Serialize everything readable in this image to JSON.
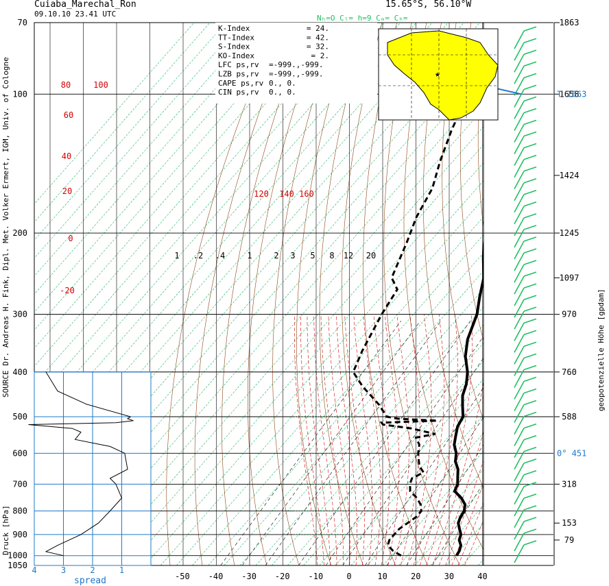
{
  "header": {
    "station": "Cuiaba_Marechal_Ron",
    "datetime": "09.10.10  23.41 UTC",
    "coords": "15.65°S, 56.10°W",
    "cloud_info": "Nₕ=O  Cₗ=    h=9  Cₘ=     Cₕ="
  },
  "left_source": "SOURCE Dr. Andreas H. Fink, Dipl. Met. Volker Ermert, IGM, Univ. of Cologne",
  "left_druck": "Druck [hPa]",
  "right_label": "geopotenzielle Höhe [gpdam]",
  "spread_label": "spread",
  "indices": [
    {
      "name": "K-Index",
      "val": "24."
    },
    {
      "name": "TT-Index",
      "val": "42."
    },
    {
      "name": "S-Index",
      "val": "32."
    },
    {
      "name": "KO-Index",
      "val": "2."
    },
    {
      "name": "LFC  ps,rv",
      "val": "=-999.,-999."
    },
    {
      "name": "LZB  ps,rv",
      "val": "=-999.,-999."
    },
    {
      "name": "CAPE ps,rv",
      "val": "0.,    0."
    },
    {
      "name": "CIN  ps,rv",
      "val": "0.,    0."
    }
  ],
  "colors": {
    "temp": "#000000",
    "dewpoint": "#000000",
    "dry_adiabat": "#8b4513",
    "moist_adiabat": "#d40000",
    "mixing_ratio": "#000000",
    "green_lines": "#20b060",
    "spread_grid": "#1e78c8",
    "wind_barb": "#20c060",
    "map_fill": "#ffff00",
    "height_marker": "#1e78c8"
  },
  "chart_data": {
    "type": "line",
    "title": "Cuiaba_Marechal_Ron",
    "xlabel": "",
    "ylabel": "Druck [hPa]",
    "pressure_ticks": [
      70,
      100,
      200,
      300,
      400,
      500,
      600,
      700,
      800,
      900,
      1000,
      1050
    ],
    "temp_ticks": [
      -50,
      -40,
      -30,
      -20,
      -10,
      0,
      10,
      20,
      30,
      40
    ],
    "spread_ticks": [
      4,
      3,
      2,
      1
    ],
    "height_ticks": [
      "1863",
      "1658",
      "1424",
      "1245",
      "1097",
      "970",
      "760",
      "588",
      "318",
      "153",
      "79"
    ],
    "height_special": [
      {
        "label": "T 1663",
        "p": 100
      },
      {
        "label": "0°   451",
        "p": 600
      }
    ],
    "dry_adiabat_labels": [
      "80",
      "100",
      "60",
      "40",
      "20",
      "0",
      "-20"
    ],
    "moist_adiabat_labels": [
      "120",
      "140",
      "160"
    ],
    "mixing_ratio_labels": [
      "1",
      ".2",
      ".4",
      "1",
      "2",
      "3",
      "5",
      "8",
      "12",
      "20"
    ],
    "series": [
      {
        "name": "",
        "points": [
          [
            1000,
            30.5
          ],
          [
            975,
            30
          ],
          [
            950,
            29
          ],
          [
            925,
            27
          ],
          [
            900,
            26
          ],
          [
            875,
            24
          ],
          [
            850,
            22
          ],
          [
            825,
            21
          ],
          [
            800,
            20.5
          ],
          [
            775,
            19
          ],
          [
            750,
            16
          ],
          [
            725,
            12
          ],
          [
            700,
            11
          ],
          [
            675,
            9
          ],
          [
            650,
            7
          ],
          [
            625,
            4
          ],
          [
            600,
            2
          ],
          [
            575,
            -1
          ],
          [
            550,
            -3
          ],
          [
            525,
            -5
          ],
          [
            500,
            -6
          ],
          [
            475,
            -9
          ],
          [
            450,
            -12
          ],
          [
            425,
            -14
          ],
          [
            400,
            -17
          ],
          [
            370,
            -22
          ],
          [
            340,
            -26
          ],
          [
            300,
            -30
          ],
          [
            275,
            -34
          ],
          [
            250,
            -38
          ],
          [
            225,
            -44
          ],
          [
            200,
            -50
          ],
          [
            175,
            -56
          ],
          [
            150,
            -63
          ],
          [
            125,
            -71
          ],
          [
            110,
            -76
          ],
          [
            100,
            -79
          ],
          [
            90,
            -79
          ],
          [
            80,
            -79
          ],
          [
            70,
            -79
          ]
        ]
      },
      {
        "name": "",
        "points": [
          [
            1000,
            13
          ],
          [
            975,
            9
          ],
          [
            950,
            6
          ],
          [
            925,
            5
          ],
          [
            900,
            5
          ],
          [
            875,
            5
          ],
          [
            850,
            6
          ],
          [
            825,
            7
          ],
          [
            800,
            7
          ],
          [
            775,
            5
          ],
          [
            750,
            2
          ],
          [
            725,
            -2
          ],
          [
            700,
            -4
          ],
          [
            680,
            -5
          ],
          [
            660,
            -3
          ],
          [
            640,
            -6
          ],
          [
            620,
            -8
          ],
          [
            600,
            -10
          ],
          [
            575,
            -12
          ],
          [
            555,
            -15
          ],
          [
            545,
            -10
          ],
          [
            530,
            -19
          ],
          [
            520,
            -29
          ],
          [
            515,
            -30
          ],
          [
            510,
            -13
          ],
          [
            505,
            -26
          ],
          [
            500,
            -30
          ],
          [
            470,
            -36
          ],
          [
            430,
            -46
          ],
          [
            400,
            -53
          ],
          [
            360,
            -56
          ],
          [
            300,
            -60
          ],
          [
            265,
            -62
          ],
          [
            250,
            -67
          ],
          [
            210,
            -72
          ],
          [
            185,
            -76
          ],
          [
            160,
            -79
          ],
          [
            140,
            -84
          ],
          [
            120,
            -89
          ],
          [
            100,
            -94
          ],
          [
            85,
            -96
          ],
          [
            70,
            -99
          ]
        ]
      }
    ],
    "spread_series": {
      "name": "",
      "points": [
        [
          1000,
          3.0
        ],
        [
          980,
          3.6
        ],
        [
          950,
          3.2
        ],
        [
          900,
          2.4
        ],
        [
          850,
          1.8
        ],
        [
          800,
          1.4
        ],
        [
          750,
          1.0
        ],
        [
          700,
          1.2
        ],
        [
          680,
          1.4
        ],
        [
          650,
          0.8
        ],
        [
          600,
          0.9
        ],
        [
          580,
          1.4
        ],
        [
          560,
          2.6
        ],
        [
          540,
          2.4
        ],
        [
          530,
          2.7
        ],
        [
          520,
          4.2
        ],
        [
          515,
          1.2
        ],
        [
          510,
          0.6
        ],
        [
          505,
          0.8
        ],
        [
          500,
          0.7
        ],
        [
          470,
          2.2
        ],
        [
          440,
          3.2
        ],
        [
          400,
          3.6
        ]
      ]
    },
    "grid": true
  }
}
